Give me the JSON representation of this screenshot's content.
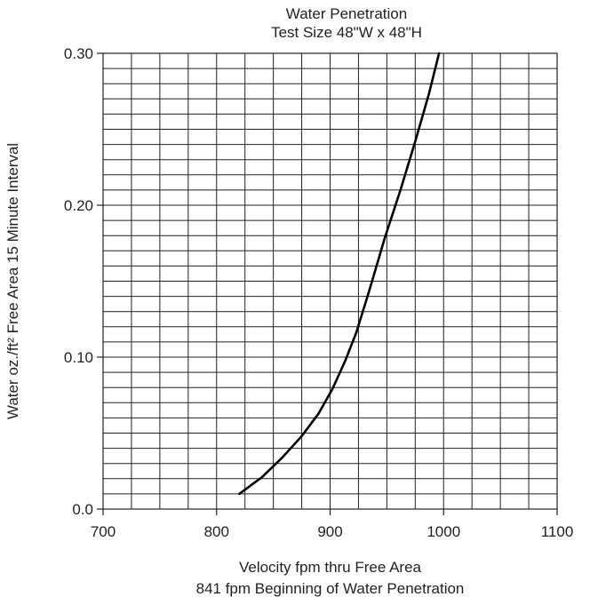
{
  "chart_data": {
    "type": "line",
    "title_lines": [
      "Water Penetration",
      "Test Size 48\"W x 48\"H"
    ],
    "xlabel_lines": [
      "Velocity fpm thru Free Area",
      "841 fpm Beginning of Water Penetration"
    ],
    "ylabel": "Water oz./ft² Free Area 15 Minute Interval",
    "xlim": [
      700,
      1100
    ],
    "ylim": [
      0.0,
      0.3
    ],
    "x_ticks": [
      700,
      800,
      900,
      1000,
      1100
    ],
    "x_tick_labels": [
      "700",
      "800",
      "900",
      "1000",
      "1100"
    ],
    "y_ticks": [
      0.0,
      0.1,
      0.2,
      0.3
    ],
    "y_tick_labels": [
      "0.0",
      "0.10",
      "0.20",
      "0.30"
    ],
    "x_minor_step": 25,
    "y_minor_step": 0.01,
    "grid": true,
    "series": [
      {
        "x": [
          820,
          840,
          858,
          875,
          890,
          902,
          913,
          923,
          935,
          948,
          962,
          975,
          987,
          996
        ],
        "y": [
          0.01,
          0.021,
          0.034,
          0.048,
          0.063,
          0.079,
          0.097,
          0.116,
          0.145,
          0.178,
          0.21,
          0.242,
          0.273,
          0.3
        ]
      }
    ]
  }
}
